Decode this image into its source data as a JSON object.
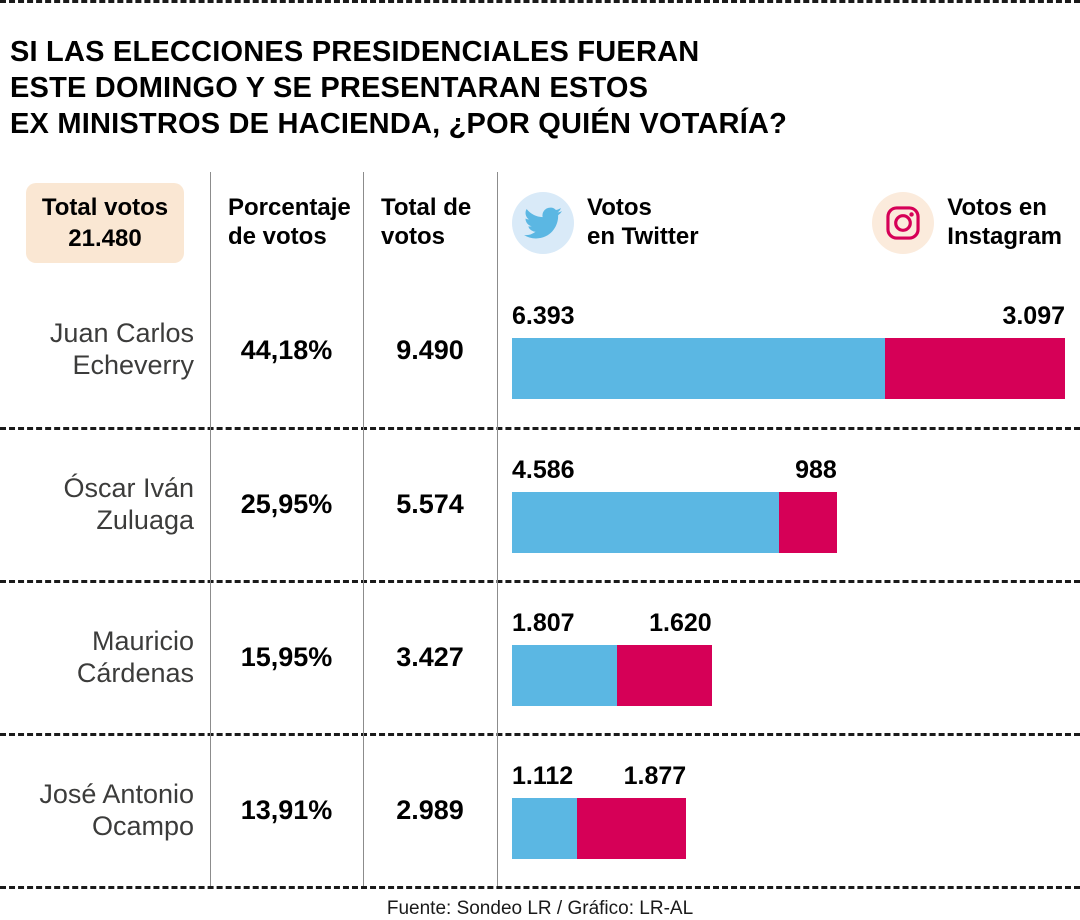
{
  "title": "SI LAS ELECCIONES PRESIDENCIALES FUERAN\nESTE DOMINGO Y SE PRESENTARAN ESTOS\nEX MINISTROS DE HACIENDA, ¿POR QUIÉN VOTARÍA?",
  "header": {
    "total_badge": {
      "label": "Total votos",
      "value": "21.480"
    },
    "columns": {
      "percentage": "Porcentaje\nde votos",
      "total": "Total de\nvotos",
      "twitter": "Votos\nen Twitter",
      "instagram": "Votos en\nInstagram"
    }
  },
  "colors": {
    "twitter_blue": "#5BB7E3",
    "instagram_pink": "#D60057",
    "badge_bg": "#FAE7D3",
    "twitter_icon_bg": "#D9EAF8",
    "instagram_icon_bg": "#FBEBDC",
    "line_gray": "#8C8C8C",
    "name_gray": "#3C3C3B"
  },
  "footer": {
    "text": "Fuente: Sondeo LR / Gráfico: LR-AL"
  },
  "chart_data": {
    "type": "bar",
    "orientation": "horizontal",
    "stacked": true,
    "title": "Si las elecciones presidenciales fueran este domingo y se presentaran estos ex ministros de Hacienda, ¿por quién votaría?",
    "total_votes": 21480,
    "scale_max": 9490,
    "legend_position": "top",
    "categories": [
      "Juan Carlos Echeverry",
      "Óscar Iván Zuluaga",
      "Mauricio Cárdenas",
      "José Antonio Ocampo"
    ],
    "percentages": [
      "44,18%",
      "25,95%",
      "15,95%",
      "13,91%"
    ],
    "totals": [
      9490,
      5574,
      3427,
      2989
    ],
    "series": [
      {
        "name": "Votos en Twitter",
        "color": "#5BB7E3",
        "values": [
          6393,
          4586,
          1807,
          1112
        ]
      },
      {
        "name": "Votos en Instagram",
        "color": "#D60057",
        "values": [
          3097,
          988,
          1620,
          1877
        ]
      }
    ],
    "rows": [
      {
        "name": "Juan Carlos\nEcheverry",
        "pct": "44,18%",
        "total": 9490,
        "total_display": "9.490",
        "twitter": 6393,
        "twitter_display": "6.393",
        "instagram": 3097,
        "instagram_display": "3.097"
      },
      {
        "name": "Óscar Iván\nZuluaga",
        "pct": "25,95%",
        "total": 5574,
        "total_display": "5.574",
        "twitter": 4586,
        "twitter_display": "4.586",
        "instagram": 988,
        "instagram_display": "988"
      },
      {
        "name": "Mauricio\nCárdenas",
        "pct": "15,95%",
        "total": 3427,
        "total_display": "3.427",
        "twitter": 1807,
        "twitter_display": "1.807",
        "instagram": 1620,
        "instagram_display": "1.620"
      },
      {
        "name": "José Antonio\nOcampo",
        "pct": "13,91%",
        "total": 2989,
        "total_display": "2.989",
        "twitter": 1112,
        "twitter_display": "1.112",
        "instagram": 1877,
        "instagram_display": "1.877"
      }
    ]
  }
}
